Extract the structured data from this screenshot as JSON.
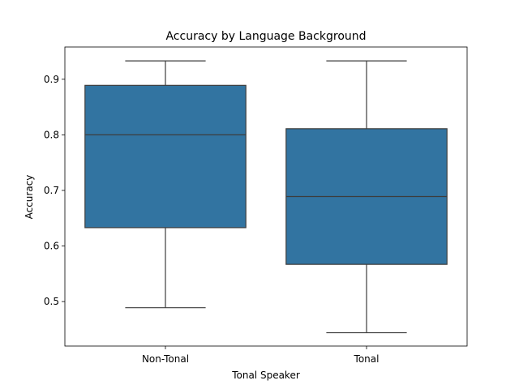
{
  "chart_data": {
    "type": "box",
    "title": "Accuracy by Language Background",
    "xlabel": "Tonal Speaker",
    "ylabel": "Accuracy",
    "categories": [
      "Non-Tonal",
      "Tonal"
    ],
    "boxes": [
      {
        "category": "Non-Tonal",
        "whisker_low": 0.489,
        "q1": 0.633,
        "median": 0.8,
        "q3": 0.889,
        "whisker_high": 0.933
      },
      {
        "category": "Tonal",
        "whisker_low": 0.444,
        "q1": 0.567,
        "median": 0.689,
        "q3": 0.811,
        "whisker_high": 0.933
      }
    ],
    "yticks": [
      "0.5",
      "0.6",
      "0.7",
      "0.8",
      "0.9"
    ],
    "ylim": [
      0.42,
      0.958
    ],
    "grid": false,
    "colors": {
      "box_fill": "#3274a1",
      "line": "#3d3d3d"
    }
  }
}
